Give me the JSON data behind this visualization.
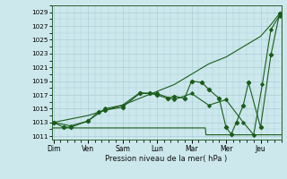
{
  "xlabel": "Pression niveau de la mer( hPa )",
  "bg_color": "#cce8ec",
  "grid_color": "#aacdd4",
  "line_color": "#1a5c1a",
  "ylim": [
    1010.5,
    1030
  ],
  "yticks": [
    1011,
    1013,
    1015,
    1017,
    1019,
    1021,
    1023,
    1025,
    1027,
    1029
  ],
  "days": [
    "Dim",
    "Ven",
    "Sam",
    "Lun",
    "Mar",
    "Mer",
    "Jeu"
  ],
  "day_positions": [
    0,
    1,
    2,
    3,
    4,
    5,
    6
  ],
  "xlim": [
    -0.05,
    6.6
  ],
  "flat_line_x": [
    0.0,
    4.4,
    4.42,
    6.6
  ],
  "flat_line_y": [
    1012.2,
    1012.2,
    1011.2,
    1011.2
  ],
  "diagonal_line_x": [
    0.0,
    1.0,
    2.0,
    3.0,
    3.5,
    4.0,
    4.5,
    5.0,
    5.5,
    6.0,
    6.3,
    6.55
  ],
  "diagonal_line_y": [
    1013.0,
    1014.0,
    1015.5,
    1017.5,
    1018.5,
    1020.0,
    1021.5,
    1022.5,
    1024.0,
    1025.5,
    1027.2,
    1028.8
  ],
  "wavy_x": [
    0.0,
    0.3,
    0.5,
    1.0,
    1.3,
    1.5,
    2.0,
    2.5,
    2.8,
    3.0,
    3.3,
    3.5,
    3.8,
    4.0,
    4.3,
    4.5,
    4.8,
    5.0,
    5.15,
    5.3,
    5.5,
    5.65,
    6.0,
    6.3,
    6.55
  ],
  "wavy_y": [
    1013.0,
    1012.3,
    1012.3,
    1013.2,
    1014.5,
    1014.8,
    1015.2,
    1017.2,
    1017.2,
    1017.0,
    1016.5,
    1016.8,
    1016.5,
    1019.0,
    1018.8,
    1017.8,
    1016.5,
    1012.3,
    1011.3,
    1013.0,
    1015.5,
    1018.8,
    1012.3,
    1022.8,
    1028.8
  ],
  "smooth_x": [
    0.0,
    0.5,
    1.0,
    1.5,
    2.0,
    2.5,
    3.0,
    3.5,
    4.0,
    4.5,
    5.0,
    5.5,
    5.8,
    6.05,
    6.3,
    6.55
  ],
  "smooth_y": [
    1013.0,
    1012.5,
    1013.2,
    1015.0,
    1015.5,
    1017.3,
    1017.2,
    1016.3,
    1017.2,
    1015.5,
    1016.3,
    1013.0,
    1011.2,
    1018.5,
    1026.5,
    1028.5
  ]
}
